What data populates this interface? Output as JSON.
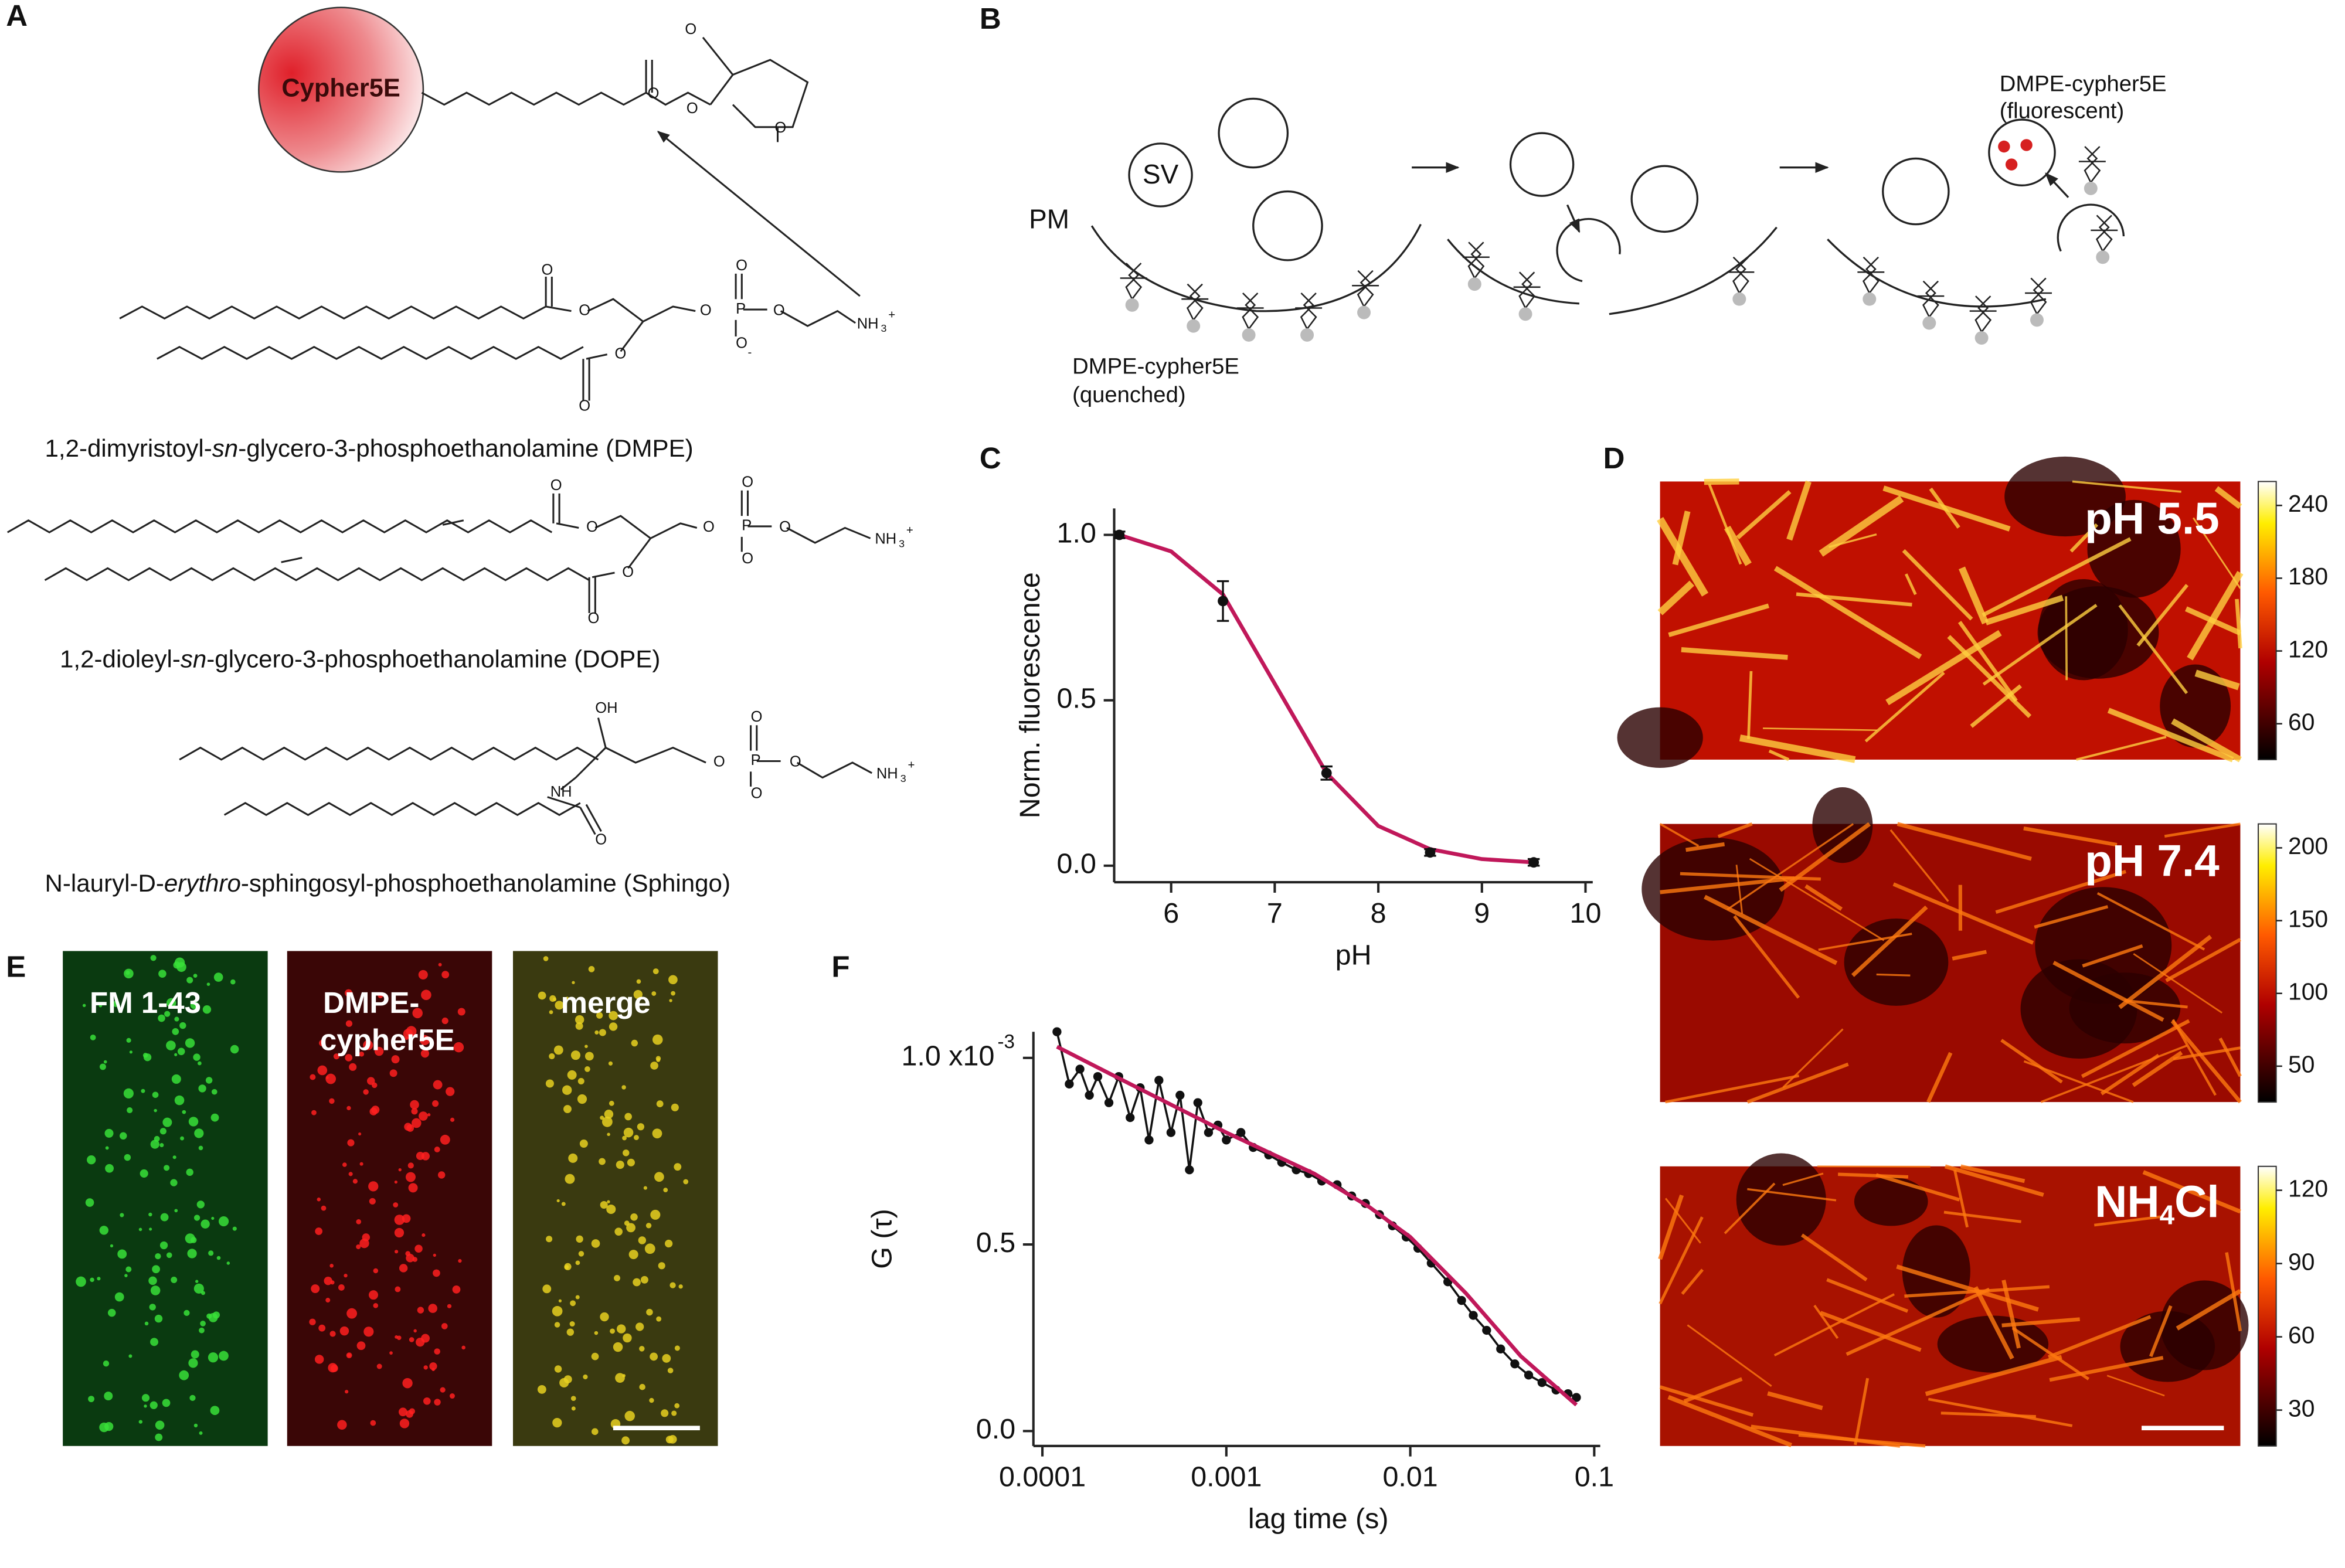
{
  "panels": {
    "A": {
      "letter": "A",
      "cypher": "Cypher5E",
      "dmpe": [
        "1,2-dimyristoyl-",
        "sn",
        "-glycero-3-phosphoethanolamine (DMPE)"
      ],
      "dope": [
        "1,2-dioleyl-",
        "sn",
        "-glycero-3-phosphoethanolamine (DOPE)"
      ],
      "sphingo": [
        "N-lauryl-D-",
        "erythro",
        "-sphingosyl-phosphoethanolamine (Sphingo)"
      ],
      "atoms": {
        "O": "O",
        "P": "P",
        "NH3": "NH",
        "sub3": "3",
        "plus": "+",
        "minus": "-",
        "OH": "OH",
        "NH": "NH"
      }
    },
    "B": {
      "letter": "B",
      "sv": "SV",
      "pm": "PM",
      "quenched": [
        "DMPE-cypher5E",
        "(quenched)"
      ],
      "fluorescent": [
        "DMPE-cypher5E",
        "(fluorescent)"
      ]
    },
    "C": {
      "letter": "C"
    },
    "D": {
      "letter": "D",
      "images": [
        {
          "label": [
            "pH 5.5"
          ],
          "cbar_ticks": [
            240,
            180,
            120,
            60
          ]
        },
        {
          "label": [
            "pH 7.4"
          ],
          "cbar_ticks": [
            200,
            150,
            100,
            50
          ]
        },
        {
          "label": [
            "NH",
            "4",
            "Cl"
          ],
          "cbar_ticks": [
            120,
            90,
            60,
            30
          ]
        }
      ]
    },
    "E": {
      "letter": "E",
      "images": [
        {
          "label": [
            "FM 1-43"
          ]
        },
        {
          "label": [
            "DMPE-",
            "cypher5E"
          ]
        },
        {
          "label": [
            "merge"
          ]
        }
      ]
    },
    "F": {
      "letter": "F"
    }
  },
  "chart_data": [
    {
      "type": "line",
      "xlabel": "pH",
      "ylabel": "Norm. fluorescence",
      "xlim": [
        5.45,
        10.07
      ],
      "ylim": [
        -0.05,
        1.08
      ],
      "xticks": [
        6,
        7,
        8,
        9,
        10
      ],
      "yticks": [
        {
          "value": 0,
          "label": "0.0"
        },
        {
          "value": 0.5,
          "label": "0.5"
        },
        {
          "value": 1,
          "label": "1.0"
        }
      ],
      "series": [
        {
          "color": "#c0185a",
          "x": [
            5.5,
            6,
            6.5,
            7,
            7.5,
            8,
            8.5,
            9,
            9.5
          ],
          "values": [
            1.0,
            0.95,
            0.82,
            0.55,
            0.28,
            0.12,
            0.05,
            0.02,
            0.01
          ]
        },
        {
          "color": "#111111",
          "markers": true,
          "x": [
            5.5,
            6.5,
            7.5,
            8.5,
            9.5
          ],
          "values": [
            1.0,
            0.8,
            0.28,
            0.04,
            0.01
          ],
          "errors": [
            0.01,
            0.06,
            0.02,
            0.01,
            0.01
          ]
        }
      ]
    },
    {
      "type": "line",
      "log_x": true,
      "xlabel": "lag time (s)",
      "ylabel": "G (τ)",
      "xlim": [
        0.0001,
        0.1
      ],
      "ylim": [
        -0.04,
        1.07
      ],
      "xticks": [
        0.0001,
        0.001,
        0.01,
        0.1
      ],
      "yticks": [
        {
          "value": 0,
          "label": "0.0"
        },
        {
          "value": 0.5,
          "label": "0.5"
        },
        {
          "value": 1,
          "label": "1.0 x10"
        }
      ],
      "y_exponent": "-3",
      "series": [
        {
          "color": "#111111",
          "markers": true,
          "x": [
            0.00012,
            0.00014,
            0.00016,
            0.00018,
            0.0002,
            0.00023,
            0.00026,
            0.0003,
            0.00034,
            0.00038,
            0.00043,
            0.0005,
            0.00056,
            0.00063,
            0.0007,
            0.0008,
            0.0009,
            0.001,
            0.0012,
            0.0014,
            0.0017,
            0.002,
            0.0024,
            0.0028,
            0.0033,
            0.004,
            0.0048,
            0.0057,
            0.0068,
            0.008,
            0.0095,
            0.011,
            0.013,
            0.016,
            0.019,
            0.022,
            0.026,
            0.031,
            0.037,
            0.044,
            0.052,
            0.062,
            0.072,
            0.08
          ],
          "values": [
            1.07,
            0.93,
            0.97,
            0.9,
            0.95,
            0.88,
            0.95,
            0.84,
            0.92,
            0.78,
            0.94,
            0.8,
            0.9,
            0.7,
            0.88,
            0.8,
            0.82,
            0.78,
            0.8,
            0.76,
            0.74,
            0.72,
            0.7,
            0.69,
            0.67,
            0.66,
            0.63,
            0.61,
            0.58,
            0.55,
            0.52,
            0.49,
            0.45,
            0.4,
            0.35,
            0.31,
            0.27,
            0.22,
            0.18,
            0.15,
            0.13,
            0.11,
            0.1,
            0.09
          ]
        },
        {
          "color": "#c0185a",
          "x": [
            0.00012,
            0.0003,
            0.001,
            0.003,
            0.006,
            0.01,
            0.02,
            0.04,
            0.08
          ],
          "values": [
            1.03,
            0.93,
            0.8,
            0.69,
            0.6,
            0.52,
            0.37,
            0.2,
            0.07
          ]
        }
      ]
    }
  ]
}
